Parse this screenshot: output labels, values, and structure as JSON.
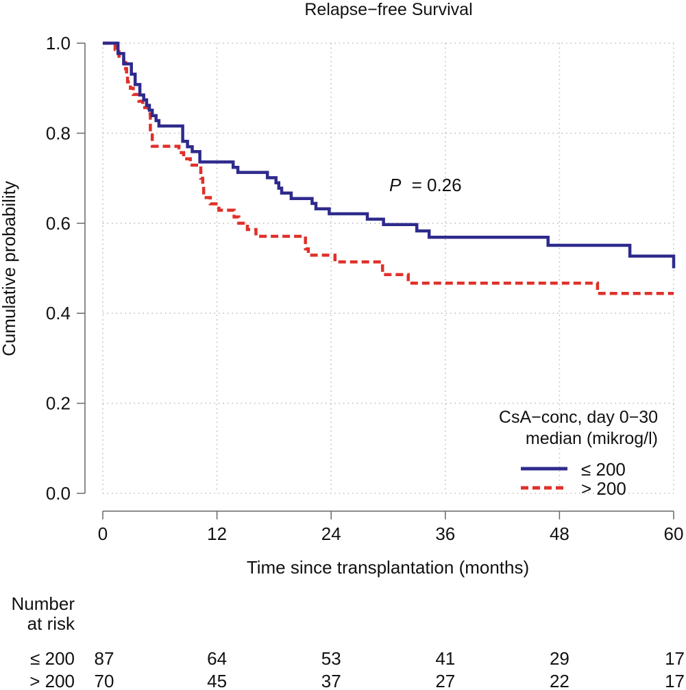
{
  "chart_data": {
    "type": "line",
    "subtype": "kaplan-meier step",
    "title": "Relapse−free Survival",
    "xlabel": "Time since transplantation (months)",
    "ylabel": "Cumulative probability",
    "xlim": [
      0,
      60
    ],
    "ylim": [
      0,
      1
    ],
    "xticks": [
      "0",
      "12",
      "24",
      "36",
      "48",
      "60"
    ],
    "yticks": [
      "0.0",
      "0.2",
      "0.4",
      "0.6",
      "0.8",
      "1.0"
    ],
    "grid": true,
    "annotation": {
      "label": "P",
      "text": "= 0.26"
    },
    "legend": {
      "title_line1": "CsA−conc, day 0−30",
      "title_line2": "median (mikrog/l)",
      "placement": "bottom-right"
    },
    "series": [
      {
        "name": "≤ 200",
        "color": "#2e2a8c",
        "style": "solid",
        "steps": [
          [
            0,
            1.0
          ],
          [
            1.6,
            0.977
          ],
          [
            2.2,
            0.954
          ],
          [
            3.0,
            0.931
          ],
          [
            3.4,
            0.908
          ],
          [
            3.9,
            0.885
          ],
          [
            4.3,
            0.874
          ],
          [
            4.6,
            0.862
          ],
          [
            4.9,
            0.851
          ],
          [
            5.2,
            0.839
          ],
          [
            5.6,
            0.828
          ],
          [
            5.9,
            0.816
          ],
          [
            8.4,
            0.782
          ],
          [
            8.9,
            0.77
          ],
          [
            9.4,
            0.759
          ],
          [
            10.2,
            0.736
          ],
          [
            13.7,
            0.724
          ],
          [
            14.2,
            0.713
          ],
          [
            17.3,
            0.701
          ],
          [
            18.2,
            0.69
          ],
          [
            18.5,
            0.678
          ],
          [
            18.8,
            0.667
          ],
          [
            19.8,
            0.655
          ],
          [
            22.0,
            0.644
          ],
          [
            22.4,
            0.632
          ],
          [
            23.8,
            0.621
          ],
          [
            27.8,
            0.609
          ],
          [
            29.5,
            0.597
          ],
          [
            33.0,
            0.583
          ],
          [
            34.3,
            0.569
          ],
          [
            46.8,
            0.551
          ],
          [
            55.4,
            0.527
          ],
          [
            60.0,
            0.5
          ]
        ],
        "end": 60.0
      },
      {
        "name": "> 200",
        "color": "#e0302a",
        "style": "dashed",
        "steps": [
          [
            0,
            1.0
          ],
          [
            1.3,
            0.986
          ],
          [
            1.7,
            0.971
          ],
          [
            2.2,
            0.957
          ],
          [
            2.4,
            0.943
          ],
          [
            2.5,
            0.929
          ],
          [
            2.6,
            0.914
          ],
          [
            2.9,
            0.9
          ],
          [
            3.2,
            0.886
          ],
          [
            3.8,
            0.871
          ],
          [
            4.2,
            0.857
          ],
          [
            4.8,
            0.843
          ],
          [
            5.0,
            0.8
          ],
          [
            5.2,
            0.771
          ],
          [
            8.0,
            0.757
          ],
          [
            8.5,
            0.743
          ],
          [
            9.2,
            0.729
          ],
          [
            10.3,
            0.7
          ],
          [
            10.5,
            0.686
          ],
          [
            10.6,
            0.657
          ],
          [
            11.3,
            0.643
          ],
          [
            12.2,
            0.629
          ],
          [
            13.8,
            0.614
          ],
          [
            14.3,
            0.6
          ],
          [
            15.2,
            0.586
          ],
          [
            16.1,
            0.571
          ],
          [
            21.3,
            0.543
          ],
          [
            21.6,
            0.529
          ],
          [
            24.4,
            0.514
          ],
          [
            29.4,
            0.486
          ],
          [
            32.1,
            0.467
          ],
          [
            52.0,
            0.444
          ]
        ],
        "end": 60.0
      }
    ],
    "risk_table": {
      "header_line1": "Number",
      "header_line2": "at risk",
      "times": [
        0,
        12,
        24,
        36,
        48,
        60
      ],
      "rows": [
        {
          "label": "≤ 200",
          "counts": [
            "87",
            "64",
            "53",
            "41",
            "29",
            "17"
          ]
        },
        {
          "label": "> 200",
          "counts": [
            "70",
            "45",
            "37",
            "27",
            "22",
            "17"
          ]
        }
      ]
    }
  }
}
